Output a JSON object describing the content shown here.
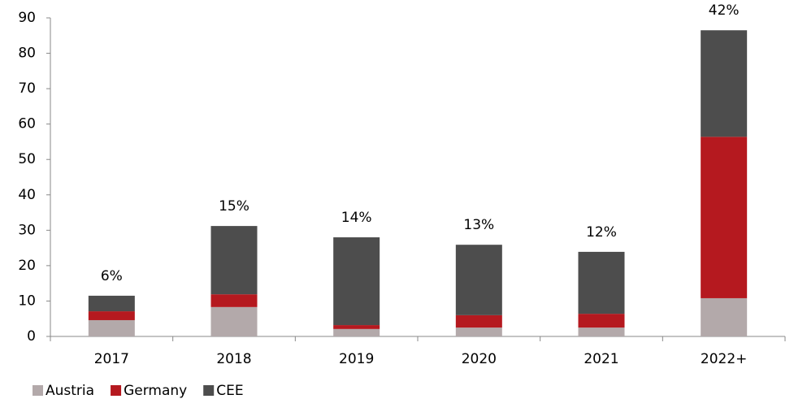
{
  "chart_data": {
    "type": "bar",
    "stacked": true,
    "categories": [
      "2017",
      "2018",
      "2019",
      "2020",
      "2021",
      "2022+"
    ],
    "series": [
      {
        "name": "Austria",
        "color": "#b3a9aa",
        "values": [
          4.6,
          8.3,
          2.1,
          2.5,
          2.5,
          10.8
        ]
      },
      {
        "name": "Germany",
        "color": "#b5191f",
        "values": [
          2.5,
          3.6,
          1.1,
          3.5,
          3.9,
          45.6
        ]
      },
      {
        "name": "CEE",
        "color": "#4d4d4d",
        "values": [
          4.4,
          19.3,
          24.8,
          19.9,
          17.5,
          30.1
        ]
      }
    ],
    "bar_top_labels": [
      "6%",
      "15%",
      "14%",
      "13%",
      "12%",
      "42%"
    ],
    "ylim": [
      0,
      90
    ],
    "yticks": [
      0,
      10,
      20,
      30,
      40,
      50,
      60,
      70,
      80,
      90
    ],
    "grid": false,
    "legend": "bottom-left"
  }
}
